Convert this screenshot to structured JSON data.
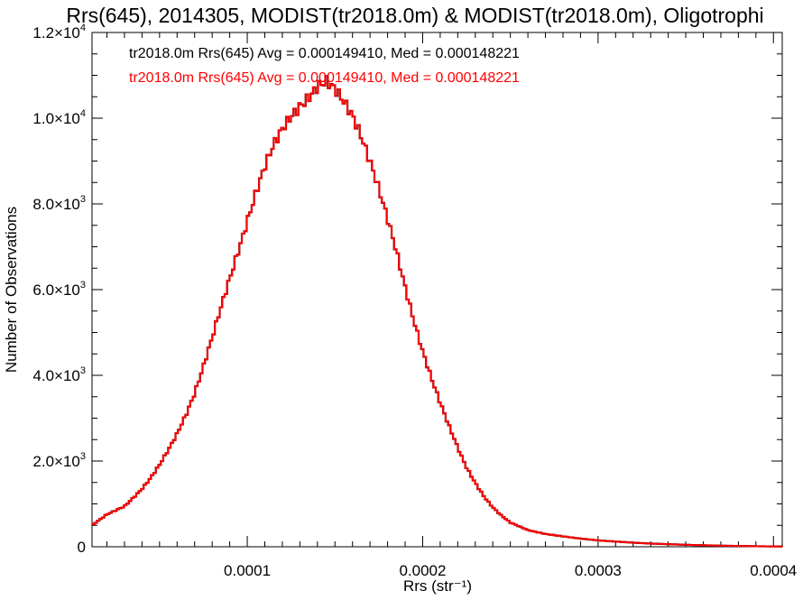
{
  "chart_data": {
    "type": "histogram",
    "title": "Rrs(645), 2014305, MODIST(tr2018.0m) & MODIST(tr2018.0m), Oligotrophi",
    "xlabel": "Rrs (str⁻¹)",
    "ylabel": "Number of Observations",
    "xlim": [
      1.15e-05,
      0.000405
    ],
    "ylim": [
      0,
      12000
    ],
    "x_tick_values": [
      0.0001,
      0.0002,
      0.0003,
      0.0004
    ],
    "x_tick_labels": [
      "0.0001",
      "0.0002",
      "0.0003",
      "0.0004"
    ],
    "y_ticks": [
      {
        "value": 0,
        "mantissa": "0",
        "exponent": ""
      },
      {
        "value": 2000,
        "mantissa": "2.0×10",
        "exponent": "3"
      },
      {
        "value": 4000,
        "mantissa": "4.0×10",
        "exponent": "3"
      },
      {
        "value": 6000,
        "mantissa": "6.0×10",
        "exponent": "3"
      },
      {
        "value": 8000,
        "mantissa": "8.0×10",
        "exponent": "3"
      },
      {
        "value": 10000,
        "mantissa": "1.0×10",
        "exponent": "4"
      },
      {
        "value": 12000,
        "mantissa": "1.2×10",
        "exponent": "4"
      }
    ],
    "grid": false,
    "legend_position": "top-left",
    "series": [
      {
        "label": "tr2018.0m Rrs(645) Avg = 0.000149410, Med = 0.000148221",
        "color": "#000000"
      },
      {
        "label": "tr2018.0m Rrs(645) Avg = 0.000149410, Med = 0.000148221",
        "color": "#ff0000"
      }
    ],
    "points": [
      [
        1.15e-05,
        500
      ],
      [
        1.5e-05,
        600
      ],
      [
        2e-05,
        750
      ],
      [
        2.5e-05,
        850
      ],
      [
        3e-05,
        950
      ],
      [
        3.5e-05,
        1150
      ],
      [
        4e-05,
        1350
      ],
      [
        4.5e-05,
        1600
      ],
      [
        5e-05,
        1900
      ],
      [
        5.5e-05,
        2250
      ],
      [
        6e-05,
        2650
      ],
      [
        6.5e-05,
        3100
      ],
      [
        7e-05,
        3600
      ],
      [
        7.5e-05,
        4200
      ],
      [
        8e-05,
        4850
      ],
      [
        8.5e-05,
        5550
      ],
      [
        9e-05,
        6250
      ],
      [
        9.5e-05,
        6950
      ],
      [
        0.0001,
        7650
      ],
      [
        0.000105,
        8300
      ],
      [
        0.00011,
        8850
      ],
      [
        0.000115,
        9300
      ],
      [
        0.00012,
        9700
      ],
      [
        0.000125,
        10050
      ],
      [
        0.00013,
        10350
      ],
      [
        0.000135,
        10550
      ],
      [
        0.00014,
        10750
      ],
      [
        0.000145,
        10800
      ],
      [
        0.00015,
        10600
      ],
      [
        0.000155,
        10350
      ],
      [
        0.00016,
        10100
      ],
      [
        0.000165,
        9650
      ],
      [
        0.00017,
        9050
      ],
      [
        0.000175,
        8350
      ],
      [
        0.00018,
        7600
      ],
      [
        0.000185,
        6850
      ],
      [
        0.00019,
        6050
      ],
      [
        0.000195,
        5300
      ],
      [
        0.0002,
        4600
      ],
      [
        0.000205,
        3950
      ],
      [
        0.00021,
        3350
      ],
      [
        0.000215,
        2800
      ],
      [
        0.00022,
        2300
      ],
      [
        0.000225,
        1850
      ],
      [
        0.00023,
        1500
      ],
      [
        0.000235,
        1180
      ],
      [
        0.00024,
        920
      ],
      [
        0.000245,
        720
      ],
      [
        0.00025,
        560
      ],
      [
        0.00026,
        390
      ],
      [
        0.00027,
        300
      ],
      [
        0.00028,
        240
      ],
      [
        0.00029,
        190
      ],
      [
        0.0003,
        150
      ],
      [
        0.00031,
        120
      ],
      [
        0.00032,
        95
      ],
      [
        0.00033,
        75
      ],
      [
        0.00034,
        60
      ],
      [
        0.00035,
        45
      ],
      [
        0.00036,
        35
      ],
      [
        0.00037,
        25
      ],
      [
        0.00038,
        18
      ],
      [
        0.00039,
        12
      ],
      [
        0.0004,
        8
      ],
      [
        0.000405,
        5
      ]
    ]
  }
}
